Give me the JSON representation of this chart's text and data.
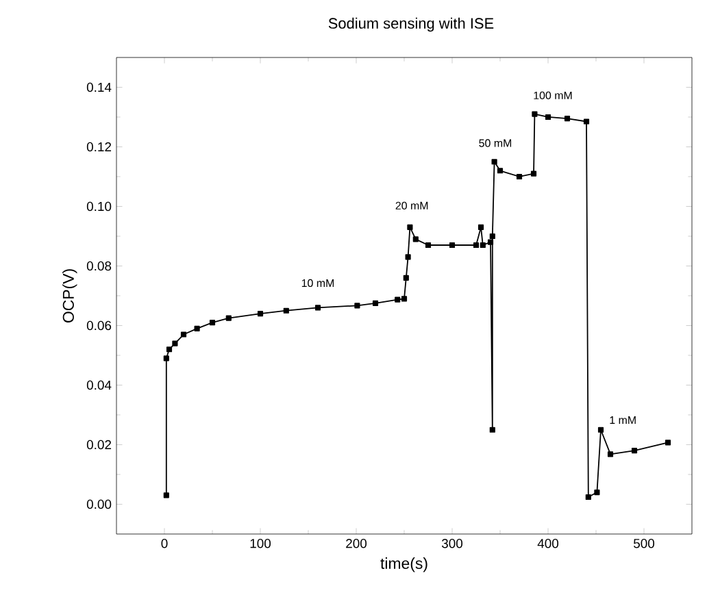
{
  "chart_data": {
    "type": "line",
    "title": "Sodium sensing with ISE",
    "xlabel": "time(s)",
    "ylabel": "OCP(V)",
    "x": [
      2,
      2,
      5,
      11,
      20,
      34,
      50,
      67,
      100,
      127,
      160,
      201,
      220,
      243,
      250,
      252,
      254,
      256,
      262,
      275,
      300,
      325,
      330,
      332,
      340,
      342,
      342,
      344,
      350,
      370,
      385,
      386,
      400,
      420,
      440,
      442,
      451,
      455,
      465,
      490,
      525
    ],
    "series": [
      {
        "color": "#000000",
        "values": [
          0.003,
          0.049,
          0.052,
          0.054,
          0.057,
          0.059,
          0.061,
          0.0625,
          0.064,
          0.065,
          0.066,
          0.0667,
          0.0675,
          0.0687,
          0.069,
          0.076,
          0.083,
          0.093,
          0.089,
          0.087,
          0.087,
          0.087,
          0.093,
          0.087,
          0.088,
          0.025,
          0.09,
          0.115,
          0.112,
          0.11,
          0.111,
          0.131,
          0.13,
          0.1295,
          0.1285,
          0.0024,
          0.004,
          0.025,
          0.0168,
          0.018,
          0.0207
        ]
      }
    ],
    "marker": "square",
    "line_style": "solid",
    "xlim": [
      -50,
      550
    ],
    "ylim": [
      -0.01,
      0.15
    ],
    "xticks": [
      0,
      100,
      200,
      300,
      400,
      500
    ],
    "yticks": [
      {
        "value": 0,
        "label": "0.00"
      },
      {
        "value": 0.02,
        "label": "0.02"
      },
      {
        "value": 0.04,
        "label": "0.04"
      },
      {
        "value": 0.06,
        "label": "0.06"
      },
      {
        "value": 0.08,
        "label": "0.08"
      },
      {
        "value": 0.1,
        "label": "0.10"
      },
      {
        "value": 0.12,
        "label": "0.12"
      },
      {
        "value": 0.14,
        "label": "0.14"
      }
    ],
    "annotations": [
      "10 mM",
      "20 mM",
      "50 mM",
      "100 mM",
      "1 mM"
    ],
    "grid": false
  }
}
